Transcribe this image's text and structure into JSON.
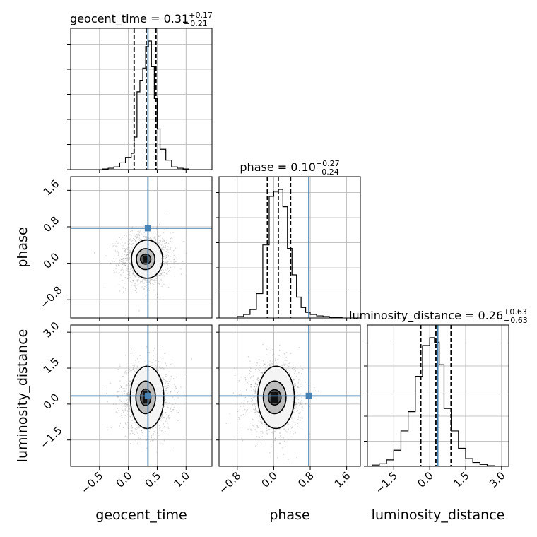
{
  "colors": {
    "truth": "#4682b4",
    "hist": "#000000",
    "grid": "#b0b0b0",
    "scatter": "#888888"
  },
  "chart_data": {
    "type": "corner",
    "parameters": [
      "geocent_time",
      "phase",
      "luminosity_distance"
    ],
    "truths": {
      "geocent_time": 0.34,
      "phase": 0.77,
      "luminosity_distance": 0.34
    },
    "ranges": {
      "geocent_time": [
        -1.0,
        1.45
      ],
      "phase": [
        -1.2,
        1.9
      ],
      "luminosity_distance": [
        -2.6,
        3.3
      ]
    },
    "ticks": {
      "geocent_time": {
        "values": [
          -0.5,
          0.0,
          0.5,
          1.0
        ],
        "labels": [
          "−0.5",
          "0.0",
          "0.5",
          "1.0"
        ]
      },
      "phase": {
        "values": [
          -0.8,
          0.0,
          0.8,
          1.6
        ],
        "labels": [
          "−0.8",
          "0.0",
          "0.8",
          "1.6"
        ]
      },
      "luminosity_distance": {
        "values": [
          -1.5,
          0.0,
          1.5,
          3.0
        ],
        "labels": [
          "−1.5",
          "0.0",
          "1.5",
          "3.0"
        ]
      }
    },
    "marginals": [
      {
        "param": "geocent_time",
        "title_main": "geocent_time = 0.31",
        "title_sup": "+0.17",
        "title_sub": "−0.21",
        "quantiles": [
          0.1,
          0.31,
          0.48
        ],
        "bin_edges": [
          -0.45,
          -0.35,
          -0.25,
          -0.15,
          -0.05,
          0.05,
          0.1,
          0.15,
          0.2,
          0.25,
          0.3,
          0.35,
          0.4,
          0.45,
          0.5,
          0.55,
          0.65,
          0.75,
          0.85,
          0.95,
          1.05
        ],
        "counts": [
          1,
          2,
          4,
          10,
          18,
          24,
          48,
          115,
          132,
          150,
          182,
          190,
          152,
          105,
          60,
          30,
          14,
          4,
          2,
          1
        ]
      },
      {
        "param": "phase",
        "title_main": "phase = 0.10",
        "title_sup": "+0.27",
        "title_sub": "−0.24",
        "quantiles": [
          -0.14,
          0.1,
          0.37
        ],
        "bin_edges": [
          -0.8,
          -0.66,
          -0.52,
          -0.38,
          -0.24,
          -0.1,
          0.0,
          0.1,
          0.2,
          0.3,
          0.4,
          0.5,
          0.6,
          0.7,
          0.8,
          0.94,
          1.08,
          1.22,
          1.36,
          1.5
        ],
        "counts": [
          2,
          5,
          12,
          35,
          105,
          175,
          182,
          185,
          160,
          100,
          62,
          30,
          15,
          8,
          5,
          3,
          2,
          1,
          1
        ]
      },
      {
        "param": "luminosity_distance",
        "title_main": "luminosity_distance = 0.26",
        "title_sup": "+0.63",
        "title_sub": "−0.63",
        "quantiles": [
          -0.37,
          0.26,
          0.89
        ],
        "bin_edges": [
          -2.4,
          -2.1,
          -1.8,
          -1.5,
          -1.2,
          -0.9,
          -0.6,
          -0.3,
          0.0,
          0.2,
          0.4,
          0.6,
          0.9,
          1.2,
          1.5,
          1.8,
          2.1,
          2.4,
          2.7
        ],
        "counts": [
          2,
          4,
          10,
          25,
          55,
          85,
          140,
          188,
          200,
          193,
          158,
          90,
          55,
          28,
          12,
          6,
          3,
          1
        ]
      }
    ],
    "joint": [
      {
        "x": "geocent_time",
        "y": "phase",
        "center": [
          0.3,
          0.09
        ],
        "spread": [
          0.21,
          0.28
        ],
        "contour_radii": [
          [
            0.09,
            0.11
          ],
          [
            0.16,
            0.23
          ],
          [
            0.27,
            0.42
          ]
        ],
        "truth": [
          0.34,
          0.77
        ]
      },
      {
        "x": "geocent_time",
        "y": "luminosity_distance",
        "center": [
          0.3,
          0.28
        ],
        "spread": [
          0.21,
          0.7
        ],
        "contour_radii": [
          [
            0.09,
            0.35
          ],
          [
            0.17,
            0.68
          ],
          [
            0.29,
            1.3
          ]
        ],
        "truth": [
          0.34,
          0.34
        ]
      },
      {
        "x": "phase",
        "y": "luminosity_distance",
        "center": [
          0.02,
          0.28
        ],
        "spread": [
          0.28,
          0.7
        ],
        "contour_radii": [
          [
            0.14,
            0.32
          ],
          [
            0.25,
            0.68
          ],
          [
            0.4,
            1.3
          ]
        ],
        "truth": [
          0.77,
          0.34
        ]
      }
    ],
    "grid": true
  }
}
